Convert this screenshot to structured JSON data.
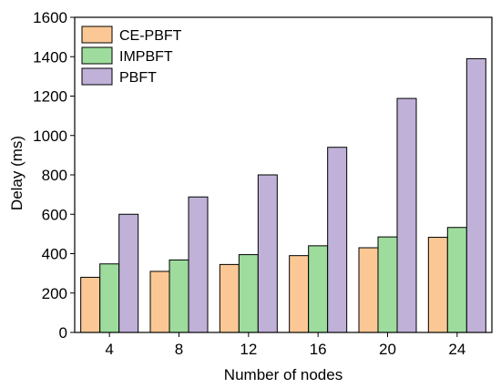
{
  "chart_data": {
    "type": "bar",
    "title": "",
    "xlabel": "Number of nodes",
    "ylabel": "Delay (ms)",
    "categories": [
      "4",
      "8",
      "12",
      "16",
      "20",
      "24"
    ],
    "series": [
      {
        "name": "CE-PBFT",
        "color": "#fbc895",
        "values": [
          280,
          310,
          345,
          390,
          430,
          483
        ]
      },
      {
        "name": "IMPBFT",
        "color": "#9ddc9d",
        "values": [
          348,
          368,
          395,
          440,
          485,
          533
        ]
      },
      {
        "name": "PBFT",
        "color": "#c0b1d8",
        "values": [
          600,
          688,
          800,
          940,
          1188,
          1390
        ]
      }
    ],
    "ylim": [
      0,
      1600
    ],
    "yticks": [
      "0",
      "200",
      "400",
      "600",
      "800",
      "1000",
      "1200",
      "1400",
      "1600"
    ],
    "grid": false,
    "legend_position": "top-left"
  }
}
